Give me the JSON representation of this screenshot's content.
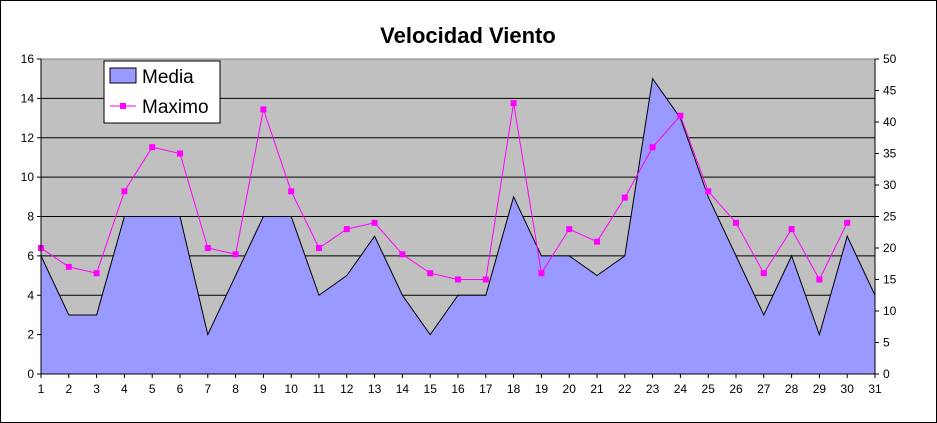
{
  "chart_data": {
    "type": "area",
    "title": "Velocidad Viento",
    "x": [
      1,
      2,
      3,
      4,
      5,
      6,
      7,
      8,
      9,
      10,
      11,
      12,
      13,
      14,
      15,
      16,
      17,
      18,
      19,
      20,
      21,
      22,
      23,
      24,
      25,
      26,
      27,
      28,
      29,
      30,
      31
    ],
    "series": [
      {
        "name": "Media",
        "kind": "area",
        "axis": "left",
        "color": "#9999ff",
        "values": [
          6,
          3,
          3,
          8,
          8,
          8,
          2,
          5,
          8,
          8,
          4,
          5,
          7,
          4,
          2,
          4,
          4,
          9,
          6,
          6,
          5,
          6,
          15,
          13,
          9,
          6,
          3,
          6,
          2,
          7,
          4
        ]
      },
      {
        "name": "Maximo",
        "kind": "line",
        "axis": "right",
        "color": "#ff00ff",
        "values": [
          20,
          17,
          16,
          29,
          36,
          35,
          20,
          19,
          42,
          29,
          20,
          23,
          24,
          19,
          16,
          15,
          15,
          43,
          16,
          23,
          21,
          28,
          36,
          41,
          29,
          24,
          16,
          23,
          15,
          24,
          null
        ]
      }
    ],
    "y_left": {
      "min": 0,
      "max": 16,
      "ticks": [
        0,
        2,
        4,
        6,
        8,
        10,
        12,
        14,
        16
      ]
    },
    "y_right": {
      "min": 0,
      "max": 50,
      "ticks": [
        0,
        5,
        10,
        15,
        20,
        25,
        30,
        35,
        40,
        45,
        50
      ]
    },
    "grid": true,
    "legend_position": "top-left",
    "plot_background": "#c0c0c0"
  }
}
